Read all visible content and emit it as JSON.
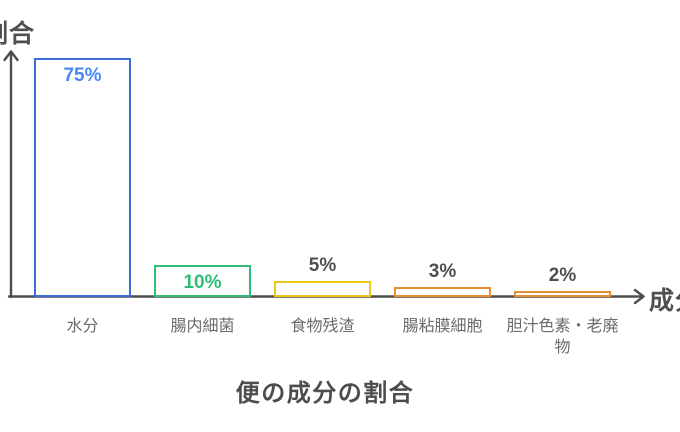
{
  "title": "便の成分の割合",
  "axes": {
    "y_label": "割合",
    "x_label": "成分"
  },
  "chart_data": {
    "type": "bar",
    "style": "outlined-bars",
    "title": "便の成分の割合",
    "xlabel": "成分",
    "ylabel": "割合",
    "categories": [
      "水分",
      "腸内細菌",
      "食物残渣",
      "腸粘膜細胞",
      "胆汁色素・老廃物"
    ],
    "values": [
      75,
      10,
      5,
      3,
      2
    ],
    "value_labels": [
      "75%",
      "10%",
      "5%",
      "3%",
      "2%"
    ],
    "bar_colors": [
      "#3d6cd8",
      "#2ebe76",
      "#ecc713",
      "#e98f33",
      "#e98f33"
    ],
    "value_label_colors": [
      "#4788f4",
      "#2ebe76",
      "#4f4f4f",
      "#4f4f4f",
      "#4f4f4f"
    ],
    "value_label_positions": [
      "inside",
      "inside",
      "above",
      "above",
      "above"
    ],
    "ylim": [
      0,
      78
    ],
    "grid": false,
    "legend": false
  },
  "colors": {
    "axis": "#4d4d4d",
    "category_label": "#6b6b6b",
    "title_text": "#4d4d4d",
    "background": "#ffffff"
  }
}
